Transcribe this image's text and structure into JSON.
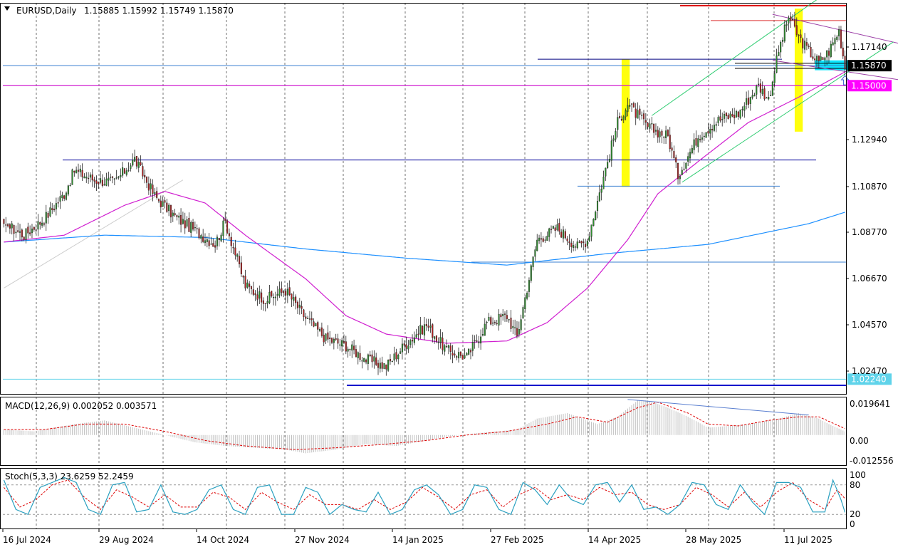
{
  "header": {
    "symbol": "EURUSD,Daily",
    "ohlc": "1.15885 1.15992 1.15749 1.15870",
    "dropdown_icon": "triangle-down-icon"
  },
  "macd": {
    "label": "MACD(12,26,9) 0.002052 0.003571"
  },
  "stoch": {
    "label": "Stoch(5,3,3) 23.6259 52.2459"
  },
  "colors": {
    "bull_candle": "#2f8f2f",
    "bear_candle": "#b22222",
    "ma_long": "#1e90ff",
    "ma_short": "#d01fd0",
    "support_line": "#00008b",
    "resistance_red": "#dd0000",
    "highlight_yellow": "#ffff00",
    "highlight_cyan": "#00e5ff",
    "price_tag": "#000000",
    "level_tag": "#ff00ff",
    "low_tag": "#5fd3ea",
    "macd_signal": "#dd0000",
    "stoch_main": "#2aa0c0",
    "stoch_signal": "#dd0000"
  },
  "chart_data": [
    {
      "type": "candlestick",
      "title": "EURUSD,Daily",
      "x_tick_labels": [
        "16 Jul 2024",
        "29 Aug 2024",
        "14 Oct 2024",
        "27 Nov 2024",
        "14 Jan 2025",
        "27 Feb 2025",
        "14 Apr 2025",
        "28 May 2025",
        "11 Jul 2025"
      ],
      "y_tick_labels": [
        "1.17140",
        "1.12940",
        "1.10870",
        "1.08770",
        "1.06670",
        "1.04570",
        "1.02470"
      ],
      "ylim": [
        1.016,
        1.186
      ],
      "grid": true,
      "price_tags": [
        {
          "value": 1.1587,
          "label": "1.15870"
        },
        {
          "value": 1.15,
          "label": "1.15000"
        },
        {
          "value": 1.0224,
          "label": "1.02240"
        }
      ],
      "close_anchors": [
        [
          0,
          1.09
        ],
        [
          10,
          1.085
        ],
        [
          20,
          1.092
        ],
        [
          30,
          1.103
        ],
        [
          35,
          1.113
        ],
        [
          45,
          1.109
        ],
        [
          55,
          1.108
        ],
        [
          65,
          1.118
        ],
        [
          75,
          1.102
        ],
        [
          85,
          1.093
        ],
        [
          95,
          1.087
        ],
        [
          105,
          1.081
        ],
        [
          110,
          1.091
        ],
        [
          120,
          1.063
        ],
        [
          130,
          1.057
        ],
        [
          140,
          1.061
        ],
        [
          150,
          1.049
        ],
        [
          160,
          1.04
        ],
        [
          170,
          1.037
        ],
        [
          180,
          1.031
        ],
        [
          190,
          1.028
        ],
        [
          200,
          1.038
        ],
        [
          210,
          1.046
        ],
        [
          220,
          1.035
        ],
        [
          230,
          1.032
        ],
        [
          240,
          1.047
        ],
        [
          250,
          1.05
        ],
        [
          255,
          1.041
        ],
        [
          265,
          1.083
        ],
        [
          275,
          1.088
        ],
        [
          285,
          1.08
        ],
        [
          290,
          1.083
        ],
        [
          300,
          1.117
        ],
        [
          305,
          1.134
        ],
        [
          310,
          1.142
        ],
        [
          320,
          1.132
        ],
        [
          330,
          1.128
        ],
        [
          335,
          1.111
        ],
        [
          345,
          1.128
        ],
        [
          355,
          1.135
        ],
        [
          365,
          1.138
        ],
        [
          375,
          1.15
        ],
        [
          380,
          1.144
        ],
        [
          385,
          1.165
        ],
        [
          390,
          1.18
        ],
        [
          395,
          1.171
        ],
        [
          400,
          1.165
        ],
        [
          405,
          1.16
        ],
        [
          410,
          1.165
        ],
        [
          415,
          1.174
        ],
        [
          418,
          1.158
        ]
      ],
      "moving_averages": [
        {
          "period_hint": "long",
          "points": [
            [
              0,
              1.082
            ],
            [
              50,
              1.085
            ],
            [
              100,
              1.084
            ],
            [
              150,
              1.079
            ],
            [
              200,
              1.075
            ],
            [
              250,
              1.072
            ],
            [
              300,
              1.077
            ],
            [
              350,
              1.081
            ],
            [
              400,
              1.09
            ],
            [
              418,
              1.095
            ]
          ]
        },
        {
          "period_hint": "short",
          "points": [
            [
              0,
              1.082
            ],
            [
              30,
              1.085
            ],
            [
              60,
              1.098
            ],
            [
              80,
              1.104
            ],
            [
              100,
              1.099
            ],
            [
              120,
              1.085
            ],
            [
              150,
              1.066
            ],
            [
              170,
              1.05
            ],
            [
              190,
              1.042
            ],
            [
              220,
              1.038
            ],
            [
              250,
              1.039
            ],
            [
              270,
              1.047
            ],
            [
              290,
              1.062
            ],
            [
              310,
              1.083
            ],
            [
              325,
              1.103
            ],
            [
              345,
              1.117
            ],
            [
              370,
              1.134
            ],
            [
              395,
              1.145
            ],
            [
              418,
              1.156
            ]
          ]
        }
      ],
      "horizontal_levels": [
        1.1587,
        1.15,
        1.0224,
        1.1615,
        1.1597,
        1.1575,
        1.1177,
        1.1063,
        1.0733,
        1.0197,
        1.1783,
        1.1848
      ],
      "trendlines": [
        {
          "from": [
            382,
            1.181
          ],
          "to": [
            459,
            1.1655
          ]
        },
        {
          "from": [
            382,
            1.161
          ],
          "to": [
            449,
            1.152
          ]
        },
        {
          "from": [
            322,
            1.137
          ],
          "to": [
            405,
            1.188
          ]
        },
        {
          "from": [
            337,
            1.108
          ],
          "to": [
            442,
            1.169
          ]
        },
        {
          "from": [
            0,
            1.062
          ],
          "to": [
            89,
            1.109
          ]
        }
      ],
      "highlights": [
        {
          "x": [
            307,
            311
          ],
          "y": [
            1.106,
            1.1615
          ],
          "color": "yellow"
        },
        {
          "x": [
            393,
            397
          ],
          "y": [
            1.13,
            1.1835
          ],
          "color": "yellow"
        },
        {
          "x": [
            403,
            430
          ],
          "y": [
            1.1567,
            1.161
          ],
          "color": "cyan"
        }
      ],
      "arrow_marker": {
        "x": 418,
        "value": 1.1525,
        "icon": "arrow-up-icon"
      }
    },
    {
      "type": "bar",
      "title": "MACD(12,26,9) 0.002052 0.003571",
      "y_tick_labels": [
        "0.019641",
        "0.00",
        "-0.012556"
      ],
      "ylim": [
        -0.0165,
        0.021
      ],
      "grid": true,
      "histogram_anchors": [
        [
          0,
          0.003
        ],
        [
          15,
          0.002
        ],
        [
          25,
          0.004
        ],
        [
          35,
          0.006
        ],
        [
          50,
          0.008
        ],
        [
          65,
          0.004
        ],
        [
          80,
          0.0
        ],
        [
          95,
          -0.004
        ],
        [
          110,
          -0.006
        ],
        [
          125,
          -0.007
        ],
        [
          140,
          -0.008
        ],
        [
          150,
          -0.01
        ],
        [
          165,
          -0.008
        ],
        [
          180,
          -0.005
        ],
        [
          195,
          -0.006
        ],
        [
          210,
          -0.003
        ],
        [
          220,
          -0.001
        ],
        [
          235,
          0.001
        ],
        [
          255,
          0.003
        ],
        [
          265,
          0.009
        ],
        [
          280,
          0.012
        ],
        [
          295,
          0.006
        ],
        [
          305,
          0.01
        ],
        [
          315,
          0.019
        ],
        [
          320,
          0.019
        ],
        [
          330,
          0.015
        ],
        [
          340,
          0.01
        ],
        [
          350,
          0.004
        ],
        [
          360,
          0.005
        ],
        [
          370,
          0.006
        ],
        [
          385,
          0.009
        ],
        [
          395,
          0.012
        ],
        [
          405,
          0.009
        ],
        [
          410,
          0.006
        ],
        [
          418,
          0.002
        ]
      ],
      "signal_anchors": [
        [
          0,
          0.003
        ],
        [
          20,
          0.003
        ],
        [
          40,
          0.006
        ],
        [
          60,
          0.006
        ],
        [
          80,
          0.002
        ],
        [
          100,
          -0.003
        ],
        [
          120,
          -0.006
        ],
        [
          145,
          -0.008
        ],
        [
          165,
          -0.007
        ],
        [
          190,
          -0.005
        ],
        [
          210,
          -0.003
        ],
        [
          230,
          0.0
        ],
        [
          250,
          0.002
        ],
        [
          270,
          0.006
        ],
        [
          285,
          0.01
        ],
        [
          300,
          0.007
        ],
        [
          315,
          0.015
        ],
        [
          325,
          0.018
        ],
        [
          340,
          0.012
        ],
        [
          350,
          0.006
        ],
        [
          365,
          0.005
        ],
        [
          380,
          0.008
        ],
        [
          395,
          0.01
        ],
        [
          405,
          0.01
        ],
        [
          418,
          0.0035
        ]
      ],
      "divergence_line": {
        "from": [
          310,
          0.0195
        ],
        "to": [
          400,
          0.011
        ]
      }
    },
    {
      "type": "line",
      "title": "Stoch(5,3,3) 23.6259 52.2459",
      "y_tick_labels": [
        "100",
        "80",
        "20",
        "0"
      ],
      "ylim": [
        0,
        100
      ],
      "levels": [
        80,
        20
      ],
      "grid": true,
      "main_anchors": [
        [
          0,
          90
        ],
        [
          6,
          30
        ],
        [
          12,
          20
        ],
        [
          18,
          75
        ],
        [
          24,
          85
        ],
        [
          30,
          95
        ],
        [
          36,
          85
        ],
        [
          42,
          30
        ],
        [
          48,
          20
        ],
        [
          54,
          80
        ],
        [
          60,
          85
        ],
        [
          66,
          25
        ],
        [
          72,
          30
        ],
        [
          78,
          80
        ],
        [
          84,
          25
        ],
        [
          90,
          20
        ],
        [
          96,
          30
        ],
        [
          102,
          70
        ],
        [
          108,
          80
        ],
        [
          114,
          30
        ],
        [
          120,
          20
        ],
        [
          126,
          75
        ],
        [
          132,
          80
        ],
        [
          138,
          20
        ],
        [
          144,
          20
        ],
        [
          150,
          75
        ],
        [
          156,
          65
        ],
        [
          162,
          20
        ],
        [
          168,
          40
        ],
        [
          174,
          30
        ],
        [
          180,
          25
        ],
        [
          186,
          65
        ],
        [
          192,
          20
        ],
        [
          198,
          30
        ],
        [
          204,
          70
        ],
        [
          210,
          80
        ],
        [
          216,
          60
        ],
        [
          222,
          20
        ],
        [
          228,
          30
        ],
        [
          234,
          80
        ],
        [
          240,
          75
        ],
        [
          246,
          30
        ],
        [
          252,
          20
        ],
        [
          258,
          85
        ],
        [
          264,
          70
        ],
        [
          270,
          40
        ],
        [
          276,
          80
        ],
        [
          282,
          50
        ],
        [
          288,
          40
        ],
        [
          294,
          80
        ],
        [
          300,
          85
        ],
        [
          306,
          45
        ],
        [
          312,
          80
        ],
        [
          318,
          30
        ],
        [
          324,
          35
        ],
        [
          330,
          20
        ],
        [
          336,
          40
        ],
        [
          342,
          85
        ],
        [
          348,
          80
        ],
        [
          354,
          40
        ],
        [
          360,
          30
        ],
        [
          366,
          80
        ],
        [
          372,
          45
        ],
        [
          378,
          20
        ],
        [
          384,
          85
        ],
        [
          390,
          85
        ],
        [
          396,
          75
        ],
        [
          402,
          25
        ],
        [
          408,
          25
        ],
        [
          412,
          90
        ],
        [
          416,
          50
        ],
        [
          418,
          24
        ]
      ],
      "signal_anchors": [
        [
          0,
          75
        ],
        [
          8,
          35
        ],
        [
          16,
          50
        ],
        [
          24,
          80
        ],
        [
          32,
          90
        ],
        [
          40,
          55
        ],
        [
          48,
          30
        ],
        [
          56,
          70
        ],
        [
          64,
          55
        ],
        [
          72,
          35
        ],
        [
          80,
          60
        ],
        [
          88,
          35
        ],
        [
          96,
          35
        ],
        [
          104,
          65
        ],
        [
          112,
          55
        ],
        [
          120,
          30
        ],
        [
          128,
          65
        ],
        [
          136,
          45
        ],
        [
          144,
          30
        ],
        [
          152,
          60
        ],
        [
          160,
          40
        ],
        [
          168,
          40
        ],
        [
          176,
          30
        ],
        [
          184,
          50
        ],
        [
          192,
          30
        ],
        [
          200,
          45
        ],
        [
          208,
          75
        ],
        [
          216,
          55
        ],
        [
          224,
          30
        ],
        [
          232,
          60
        ],
        [
          240,
          70
        ],
        [
          248,
          35
        ],
        [
          256,
          60
        ],
        [
          264,
          75
        ],
        [
          272,
          50
        ],
        [
          280,
          60
        ],
        [
          288,
          50
        ],
        [
          296,
          75
        ],
        [
          304,
          60
        ],
        [
          312,
          65
        ],
        [
          320,
          40
        ],
        [
          328,
          30
        ],
        [
          336,
          40
        ],
        [
          344,
          75
        ],
        [
          352,
          60
        ],
        [
          360,
          35
        ],
        [
          368,
          65
        ],
        [
          376,
          35
        ],
        [
          384,
          65
        ],
        [
          392,
          85
        ],
        [
          400,
          50
        ],
        [
          408,
          30
        ],
        [
          414,
          70
        ],
        [
          418,
          52
        ]
      ]
    }
  ]
}
